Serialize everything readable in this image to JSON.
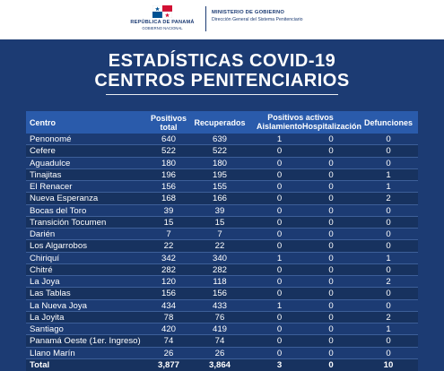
{
  "header": {
    "republic": "REPÚBLICA DE PANAMÁ",
    "government": "GOBIERNO NACIONAL",
    "ministry": "MINISTERIO DE GOBIERNO",
    "direction": "Dirección General del Sistema Penitenciario"
  },
  "title": {
    "line1": "ESTADÍSTICAS COVID-19",
    "line2": "CENTROS PENITENCIARIOS"
  },
  "table": {
    "headers": {
      "centro": "Centro",
      "positivos": "Positivos total",
      "recuperados": "Recuperados",
      "activos": "Positivos activos",
      "aislamiento": "Aislamiento",
      "hospitalizacion": "Hospitalización",
      "defunciones": "Defunciones"
    },
    "rows": [
      {
        "centro": "Penonomé",
        "positivos": "640",
        "recuperados": "639",
        "aislamiento": "1",
        "hospitalizacion": "0",
        "defunciones": "0"
      },
      {
        "centro": "Cefere",
        "positivos": "522",
        "recuperados": "522",
        "aislamiento": "0",
        "hospitalizacion": "0",
        "defunciones": "0"
      },
      {
        "centro": "Aguadulce",
        "positivos": "180",
        "recuperados": "180",
        "aislamiento": "0",
        "hospitalizacion": "0",
        "defunciones": "0"
      },
      {
        "centro": "Tinajitas",
        "positivos": "196",
        "recuperados": "195",
        "aislamiento": "0",
        "hospitalizacion": "0",
        "defunciones": "1"
      },
      {
        "centro": "El Renacer",
        "positivos": "156",
        "recuperados": "155",
        "aislamiento": "0",
        "hospitalizacion": "0",
        "defunciones": "1"
      },
      {
        "centro": "Nueva Esperanza",
        "positivos": "168",
        "recuperados": "166",
        "aislamiento": "0",
        "hospitalizacion": "0",
        "defunciones": "2"
      },
      {
        "centro": "Bocas del Toro",
        "positivos": "39",
        "recuperados": "39",
        "aislamiento": "0",
        "hospitalizacion": "0",
        "defunciones": "0"
      },
      {
        "centro": "Transición Tocumen",
        "positivos": "15",
        "recuperados": "15",
        "aislamiento": "0",
        "hospitalizacion": "0",
        "defunciones": "0"
      },
      {
        "centro": "Darién",
        "positivos": "7",
        "recuperados": "7",
        "aislamiento": "0",
        "hospitalizacion": "0",
        "defunciones": "0"
      },
      {
        "centro": "Los Algarrobos",
        "positivos": "22",
        "recuperados": "22",
        "aislamiento": "0",
        "hospitalizacion": "0",
        "defunciones": "0"
      },
      {
        "centro": "Chiriquí",
        "positivos": "342",
        "recuperados": "340",
        "aislamiento": "1",
        "hospitalizacion": "0",
        "defunciones": "1"
      },
      {
        "centro": "Chitré",
        "positivos": "282",
        "recuperados": "282",
        "aislamiento": "0",
        "hospitalizacion": "0",
        "defunciones": "0"
      },
      {
        "centro": "La Joya",
        "positivos": "120",
        "recuperados": "118",
        "aislamiento": "0",
        "hospitalizacion": "0",
        "defunciones": "2"
      },
      {
        "centro": "Las Tablas",
        "positivos": "156",
        "recuperados": "156",
        "aislamiento": "0",
        "hospitalizacion": "0",
        "defunciones": "0"
      },
      {
        "centro": "La Nueva Joya",
        "positivos": "434",
        "recuperados": "433",
        "aislamiento": "1",
        "hospitalizacion": "0",
        "defunciones": "0"
      },
      {
        "centro": "La Joyita",
        "positivos": "78",
        "recuperados": "76",
        "aislamiento": "0",
        "hospitalizacion": "0",
        "defunciones": "2"
      },
      {
        "centro": "Santiago",
        "positivos": "420",
        "recuperados": "419",
        "aislamiento": "0",
        "hospitalizacion": "0",
        "defunciones": "1"
      },
      {
        "centro": "Panamá Oeste (1er. Ingreso)",
        "positivos": "74",
        "recuperados": "74",
        "aislamiento": "0",
        "hospitalizacion": "0",
        "defunciones": "0"
      },
      {
        "centro": "Llano Marín",
        "positivos": "26",
        "recuperados": "26",
        "aislamiento": "0",
        "hospitalizacion": "0",
        "defunciones": "0"
      }
    ],
    "total": {
      "centro": "Total",
      "positivos": "3,877",
      "recuperados": "3,864",
      "aislamiento": "3",
      "hospitalizacion": "0",
      "defunciones": "10"
    }
  },
  "colors": {
    "background": "#1c3b73",
    "header_row": "#2a5bab",
    "header_band": "#ffffff"
  }
}
